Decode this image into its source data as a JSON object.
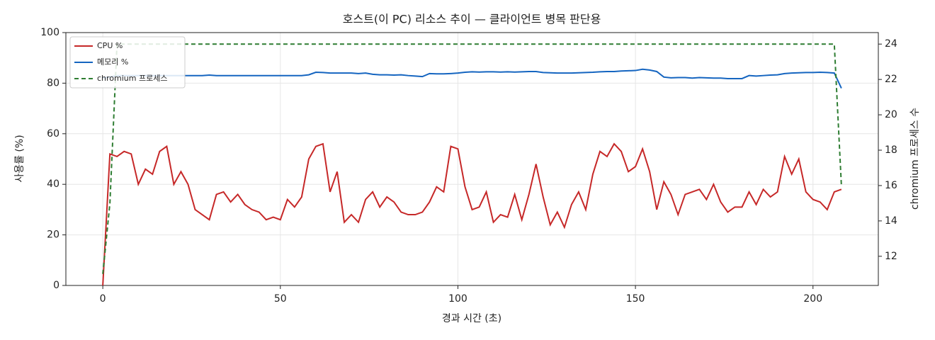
{
  "chart_data": {
    "type": "line",
    "title": "호스트(이 PC) 리소스 추이 — 클라이언트 병목 판단용",
    "x_label": "경과 시간 (초)",
    "y_label": "사용률 (%)",
    "y2_label": "chromium 프로세스 수",
    "xlim": [
      -10.4,
      218.4
    ],
    "xticks": [
      0,
      50,
      100,
      150,
      200
    ],
    "ylim": [
      0,
      100
    ],
    "yticks": [
      0,
      20,
      40,
      60,
      80,
      100
    ],
    "y2lim": [
      10.35,
      24.65
    ],
    "y2ticks": [
      12,
      14,
      16,
      18,
      20,
      22,
      24
    ],
    "grid": true,
    "legend": "upper left",
    "x": [
      0,
      2,
      4,
      6,
      8,
      10,
      12,
      14,
      16,
      18,
      20,
      22,
      24,
      26,
      28,
      30,
      32,
      34,
      36,
      38,
      40,
      42,
      44,
      46,
      48,
      50,
      52,
      54,
      56,
      58,
      60,
      62,
      64,
      66,
      68,
      70,
      72,
      74,
      76,
      78,
      80,
      82,
      84,
      86,
      88,
      90,
      92,
      94,
      96,
      98,
      100,
      102,
      104,
      106,
      108,
      110,
      112,
      114,
      116,
      118,
      120,
      122,
      124,
      126,
      128,
      130,
      132,
      134,
      136,
      138,
      140,
      142,
      144,
      146,
      148,
      150,
      152,
      154,
      156,
      158,
      160,
      162,
      164,
      166,
      168,
      170,
      172,
      174,
      176,
      178,
      180,
      182,
      184,
      186,
      188,
      190,
      192,
      194,
      196,
      198,
      200,
      202,
      204,
      206,
      208
    ],
    "series": [
      {
        "name": "CPU %",
        "color": "#c62828",
        "linestyle": "solid",
        "values": [
          0,
          52,
          51,
          53,
          52,
          40,
          46,
          44,
          53,
          55,
          40,
          45,
          40,
          30,
          28,
          26,
          36,
          37,
          33,
          36,
          32,
          30,
          29,
          26,
          27,
          26,
          34,
          31,
          35,
          50,
          55,
          56,
          37,
          45,
          25,
          28,
          25,
          34,
          37,
          31,
          35,
          33,
          29,
          28,
          28,
          29,
          33,
          39,
          37,
          55,
          54,
          39,
          30,
          31,
          37,
          25,
          28,
          27,
          36,
          26,
          36,
          48,
          35,
          24,
          29,
          23,
          32,
          37,
          30,
          44,
          53,
          51,
          56,
          53,
          45,
          47,
          54,
          45,
          30,
          41,
          36,
          28,
          36,
          37,
          38,
          34,
          40,
          33,
          29,
          31,
          31,
          37,
          32,
          38,
          35,
          37,
          51,
          44,
          50,
          37,
          34,
          33,
          30,
          37,
          38
        ]
      },
      {
        "name": "메모리 %",
        "color": "#1565c0",
        "linestyle": "solid",
        "values": [
          82,
          82.5,
          83,
          83,
          83,
          83,
          83,
          83,
          83,
          83,
          83,
          83,
          83,
          83,
          83,
          83.2,
          83,
          83,
          83,
          83,
          83,
          83,
          83,
          83,
          83,
          83,
          83,
          83,
          83,
          83.3,
          84.3,
          84.2,
          84,
          84,
          84,
          84,
          83.8,
          84,
          83.5,
          83.3,
          83.3,
          83.2,
          83.3,
          83,
          82.8,
          82.6,
          83.8,
          83.7,
          83.7,
          83.8,
          84,
          84.3,
          84.5,
          84.4,
          84.5,
          84.5,
          84.4,
          84.5,
          84.4,
          84.5,
          84.6,
          84.6,
          84.2,
          84.1,
          84,
          84,
          84,
          84.1,
          84.2,
          84.3,
          84.5,
          84.6,
          84.6,
          84.8,
          84.9,
          85,
          85.5,
          85.2,
          84.6,
          82.4,
          82.1,
          82.2,
          82.2,
          82,
          82.2,
          82.1,
          82,
          82,
          81.8,
          81.8,
          81.8,
          83,
          82.8,
          83,
          83.2,
          83.3,
          83.8,
          84,
          84.1,
          84.2,
          84.2,
          84.3,
          84.2,
          84,
          78
        ]
      },
      {
        "name": "chromium 프로세스",
        "color": "#2e7d32",
        "linestyle": "dashed",
        "axis": "y2",
        "values": [
          11,
          15,
          24,
          24,
          24,
          24,
          24,
          24,
          24,
          24,
          24,
          24,
          24,
          24,
          24,
          24,
          24,
          24,
          24,
          24,
          24,
          24,
          24,
          24,
          24,
          24,
          24,
          24,
          24,
          24,
          24,
          24,
          24,
          24,
          24,
          24,
          24,
          24,
          24,
          24,
          24,
          24,
          24,
          24,
          24,
          24,
          24,
          24,
          24,
          24,
          24,
          24,
          24,
          24,
          24,
          24,
          24,
          24,
          24,
          24,
          24,
          24,
          24,
          24,
          24,
          24,
          24,
          24,
          24,
          24,
          24,
          24,
          24,
          24,
          24,
          24,
          24,
          24,
          24,
          24,
          24,
          24,
          24,
          24,
          24,
          24,
          24,
          24,
          24,
          24,
          24,
          24,
          24,
          24,
          24,
          24,
          24,
          24,
          24,
          24,
          24,
          24,
          24,
          24,
          16
        ]
      }
    ]
  }
}
